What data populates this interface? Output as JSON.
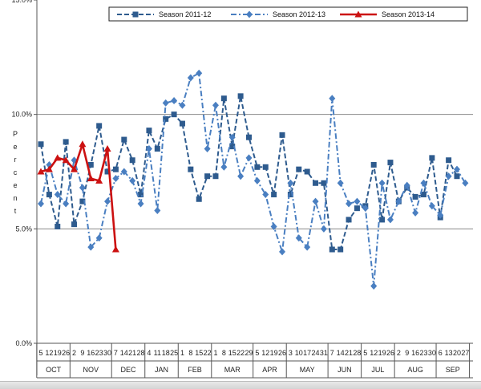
{
  "chart_data": {
    "type": "line",
    "ylabel": "Percent",
    "xlabel": "",
    "ylim": [
      0,
      15
    ],
    "y_ticks": [
      {
        "value": 0,
        "label": "0.0%"
      },
      {
        "value": 5,
        "label": "5.0%"
      },
      {
        "value": 10,
        "label": "10.0%"
      },
      {
        "value": 15,
        "label": "15.0%"
      }
    ],
    "gridlines": [
      5,
      10
    ],
    "legend_position": "top",
    "x_tick_labels": [
      "5",
      "12",
      "19",
      "26",
      "2",
      "9",
      "16",
      "23",
      "30",
      "7",
      "14",
      "21",
      "28",
      "4",
      "11",
      "18",
      "25",
      "1",
      "8",
      "15",
      "22",
      "1",
      "8",
      "15",
      "22",
      "29",
      "5",
      "12",
      "19",
      "26",
      "3",
      "10",
      "17",
      "24",
      "31",
      "7",
      "14",
      "21",
      "28",
      "5",
      "12",
      "19",
      "26",
      "2",
      "9",
      "16",
      "23",
      "30",
      "6",
      "13",
      "20",
      "27"
    ],
    "months": [
      {
        "label": "OCT",
        "start": 0,
        "end": 3
      },
      {
        "label": "NOV",
        "start": 4,
        "end": 8
      },
      {
        "label": "DEC",
        "start": 9,
        "end": 12
      },
      {
        "label": "JAN",
        "start": 13,
        "end": 16
      },
      {
        "label": "FEB",
        "start": 17,
        "end": 20
      },
      {
        "label": "MAR",
        "start": 21,
        "end": 25
      },
      {
        "label": "APR",
        "start": 26,
        "end": 29
      },
      {
        "label": "MAY",
        "start": 30,
        "end": 34
      },
      {
        "label": "JUN",
        "start": 35,
        "end": 38
      },
      {
        "label": "JUL",
        "start": 39,
        "end": 42
      },
      {
        "label": "AUG",
        "start": 43,
        "end": 47
      },
      {
        "label": "SEP",
        "start": 48,
        "end": 51
      }
    ],
    "series": [
      {
        "name": "Season 2011-12",
        "color": "#2e5b8e",
        "marker": "square",
        "line_style": "dash",
        "values": [
          8.7,
          6.5,
          5.1,
          8.8,
          5.2,
          6.2,
          7.8,
          9.5,
          7.5,
          7.6,
          8.9,
          8.0,
          6.5,
          9.3,
          8.5,
          9.8,
          10.0,
          9.6,
          7.6,
          6.3,
          7.3,
          7.3,
          10.7,
          8.6,
          10.8,
          9.0,
          7.7,
          7.7,
          6.5,
          9.1,
          6.5,
          7.6,
          7.5,
          7.0,
          7.0,
          4.1,
          4.1,
          5.4,
          5.9,
          6.0,
          7.8,
          5.4,
          7.9,
          6.2,
          6.8,
          6.4,
          6.5,
          8.1,
          5.5,
          8.0,
          7.3,
          null
        ]
      },
      {
        "name": "Season 2012-13",
        "color": "#4a7fc1",
        "marker": "diamond",
        "line_style": "dashdot",
        "values": [
          6.1,
          7.8,
          6.5,
          6.1,
          8.0,
          6.8,
          4.2,
          4.6,
          6.2,
          7.2,
          7.5,
          7.1,
          6.1,
          8.5,
          5.8,
          10.5,
          10.6,
          10.4,
          11.6,
          11.8,
          8.5,
          10.4,
          7.7,
          9.0,
          7.3,
          8.1,
          7.1,
          6.5,
          5.1,
          4.0,
          7.0,
          4.6,
          4.2,
          6.2,
          5.0,
          10.7,
          7.0,
          6.1,
          6.2,
          5.9,
          2.5,
          7.0,
          5.4,
          6.2,
          6.9,
          5.7,
          7.0,
          6.0,
          5.6,
          7.3,
          7.6,
          7.0
        ]
      },
      {
        "name": "Season 2013-14",
        "color": "#cc1111",
        "marker": "triangle",
        "line_style": "solid",
        "values": [
          7.5,
          7.6,
          8.1,
          8.0,
          7.6,
          8.7,
          7.2,
          7.1,
          8.5,
          4.1,
          null,
          null,
          null,
          null,
          null,
          null,
          null,
          null,
          null,
          null,
          null,
          null,
          null,
          null,
          null,
          null,
          null,
          null,
          null,
          null,
          null,
          null,
          null,
          null,
          null,
          null,
          null,
          null,
          null,
          null,
          null,
          null,
          null,
          null,
          null,
          null,
          null,
          null,
          null,
          null,
          null,
          null
        ]
      }
    ]
  }
}
